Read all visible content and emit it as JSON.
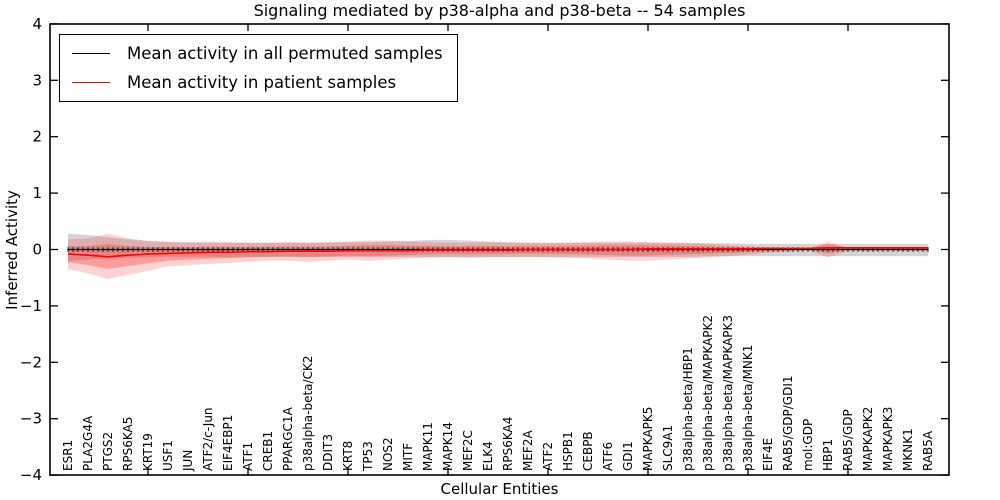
{
  "chart_data": {
    "type": "line",
    "title": "Signaling mediated by p38-alpha and p38-beta -- 54 samples",
    "xlabel": "Cellular Entities",
    "ylabel": "Inferred Activity",
    "ylim": [
      -4,
      4
    ],
    "yticks": [
      4,
      3,
      2,
      1,
      0,
      -1,
      -2,
      -3,
      -4
    ],
    "x_major_tick_indices": [
      4,
      9,
      14,
      19,
      24,
      29,
      34,
      39
    ],
    "grid": false,
    "legend_position": "upper left",
    "categories": [
      "ESR1",
      "PLA2G4A",
      "PTGS2",
      "RPS6KA5",
      "KRT19",
      "USF1",
      "JUN",
      "ATF2/c-Jun",
      "EIF4EBP1",
      "ATF1",
      "CREB1",
      "PPARGC1A",
      "p38alpha-beta/CK2",
      "DDIT3",
      "KRT8",
      "TP53",
      "NOS2",
      "MITF",
      "MAPK11",
      "MAPK14",
      "MEF2C",
      "ELK4",
      "RPS6KA4",
      "MEF2A",
      "ATF2",
      "HSPB1",
      "CEBPB",
      "ATF6",
      "GDI1",
      "MAPKAPK5",
      "SLC9A1",
      "p38alpha-beta/HBP1",
      "p38alpha-beta/MAPKAPK2",
      "p38alpha-beta/MAPKAPK3",
      "p38alpha-beta/MNK1",
      "EIF4E",
      "RAB5/GDP/GDI1",
      "mol:GDP",
      "HBP1",
      "RAB5/GDP",
      "MAPKAPK2",
      "MAPKAPK3",
      "MKNK1",
      "RAB5A"
    ],
    "series": [
      {
        "name": "Mean activity in all permuted samples",
        "color": "#000000",
        "band_color": "rgba(145,145,145,0.38)",
        "mean": [
          0,
          0,
          0,
          0,
          0,
          0,
          0,
          0,
          0,
          0,
          0,
          0,
          0,
          0,
          0,
          0,
          0,
          0,
          0,
          0,
          0,
          0,
          0,
          0,
          0,
          0,
          0,
          0,
          0,
          0,
          0,
          0,
          0,
          0,
          0,
          0,
          0,
          0,
          0,
          0,
          0,
          0,
          0,
          0
        ],
        "band_upper": [
          0.28,
          0.26,
          0.22,
          0.18,
          0.15,
          0.13,
          0.12,
          0.12,
          0.12,
          0.12,
          0.12,
          0.12,
          0.12,
          0.12,
          0.13,
          0.13,
          0.14,
          0.15,
          0.17,
          0.17,
          0.16,
          0.14,
          0.13,
          0.12,
          0.12,
          0.12,
          0.12,
          0.12,
          0.12,
          0.12,
          0.12,
          0.12,
          0.11,
          0.11,
          0.1,
          0.1,
          0.1,
          0.1,
          0.1,
          0.1,
          0.1,
          0.1,
          0.1,
          0.1
        ],
        "band_lower": [
          -0.2,
          -0.18,
          -0.16,
          -0.15,
          -0.14,
          -0.13,
          -0.13,
          -0.13,
          -0.13,
          -0.13,
          -0.13,
          -0.13,
          -0.13,
          -0.13,
          -0.13,
          -0.13,
          -0.13,
          -0.13,
          -0.13,
          -0.13,
          -0.13,
          -0.13,
          -0.13,
          -0.13,
          -0.13,
          -0.13,
          -0.13,
          -0.13,
          -0.13,
          -0.13,
          -0.13,
          -0.13,
          -0.12,
          -0.12,
          -0.12,
          -0.12,
          -0.12,
          -0.12,
          -0.12,
          -0.12,
          -0.12,
          -0.12,
          -0.12,
          -0.12
        ]
      },
      {
        "name": "Mean activity in patient samples",
        "color": "#ff0000",
        "band_color": "rgba(255,30,30,0.20)",
        "band_inner_color": "rgba(255,30,30,0.30)",
        "mean": [
          -0.08,
          -0.1,
          -0.13,
          -0.1,
          -0.08,
          -0.07,
          -0.06,
          -0.05,
          -0.05,
          -0.04,
          -0.04,
          -0.03,
          -0.03,
          -0.03,
          -0.02,
          -0.02,
          -0.02,
          -0.02,
          -0.01,
          -0.01,
          -0.01,
          -0.01,
          -0.01,
          0.0,
          0.0,
          0.0,
          0.0,
          0.0,
          0.0,
          0.01,
          0.01,
          0.01,
          0.01,
          0.01,
          0.01,
          0.02,
          0.02,
          0.02,
          0.03,
          0.03,
          0.03,
          0.03,
          0.03,
          0.03
        ],
        "band_upper": [
          0.18,
          0.2,
          0.28,
          0.2,
          0.15,
          0.14,
          0.13,
          0.14,
          0.13,
          0.12,
          0.12,
          0.13,
          0.12,
          0.13,
          0.14,
          0.16,
          0.16,
          0.14,
          0.13,
          0.12,
          0.12,
          0.13,
          0.12,
          0.12,
          0.11,
          0.12,
          0.13,
          0.14,
          0.14,
          0.13,
          0.12,
          0.11,
          0.1,
          0.08,
          0.06,
          0.04,
          0.03,
          0.01,
          0.14,
          0.03,
          0.03,
          0.03,
          0.03,
          0.03
        ],
        "band_lower": [
          -0.35,
          -0.42,
          -0.52,
          -0.45,
          -0.38,
          -0.3,
          -0.28,
          -0.26,
          -0.24,
          -0.22,
          -0.2,
          -0.2,
          -0.22,
          -0.2,
          -0.18,
          -0.2,
          -0.18,
          -0.16,
          -0.15,
          -0.14,
          -0.15,
          -0.14,
          -0.14,
          -0.13,
          -0.14,
          -0.15,
          -0.16,
          -0.18,
          -0.2,
          -0.2,
          -0.18,
          -0.16,
          -0.14,
          -0.12,
          -0.09,
          -0.06,
          -0.04,
          -0.01,
          -0.14,
          -0.03,
          -0.03,
          -0.03,
          -0.03,
          -0.03
        ]
      }
    ]
  }
}
